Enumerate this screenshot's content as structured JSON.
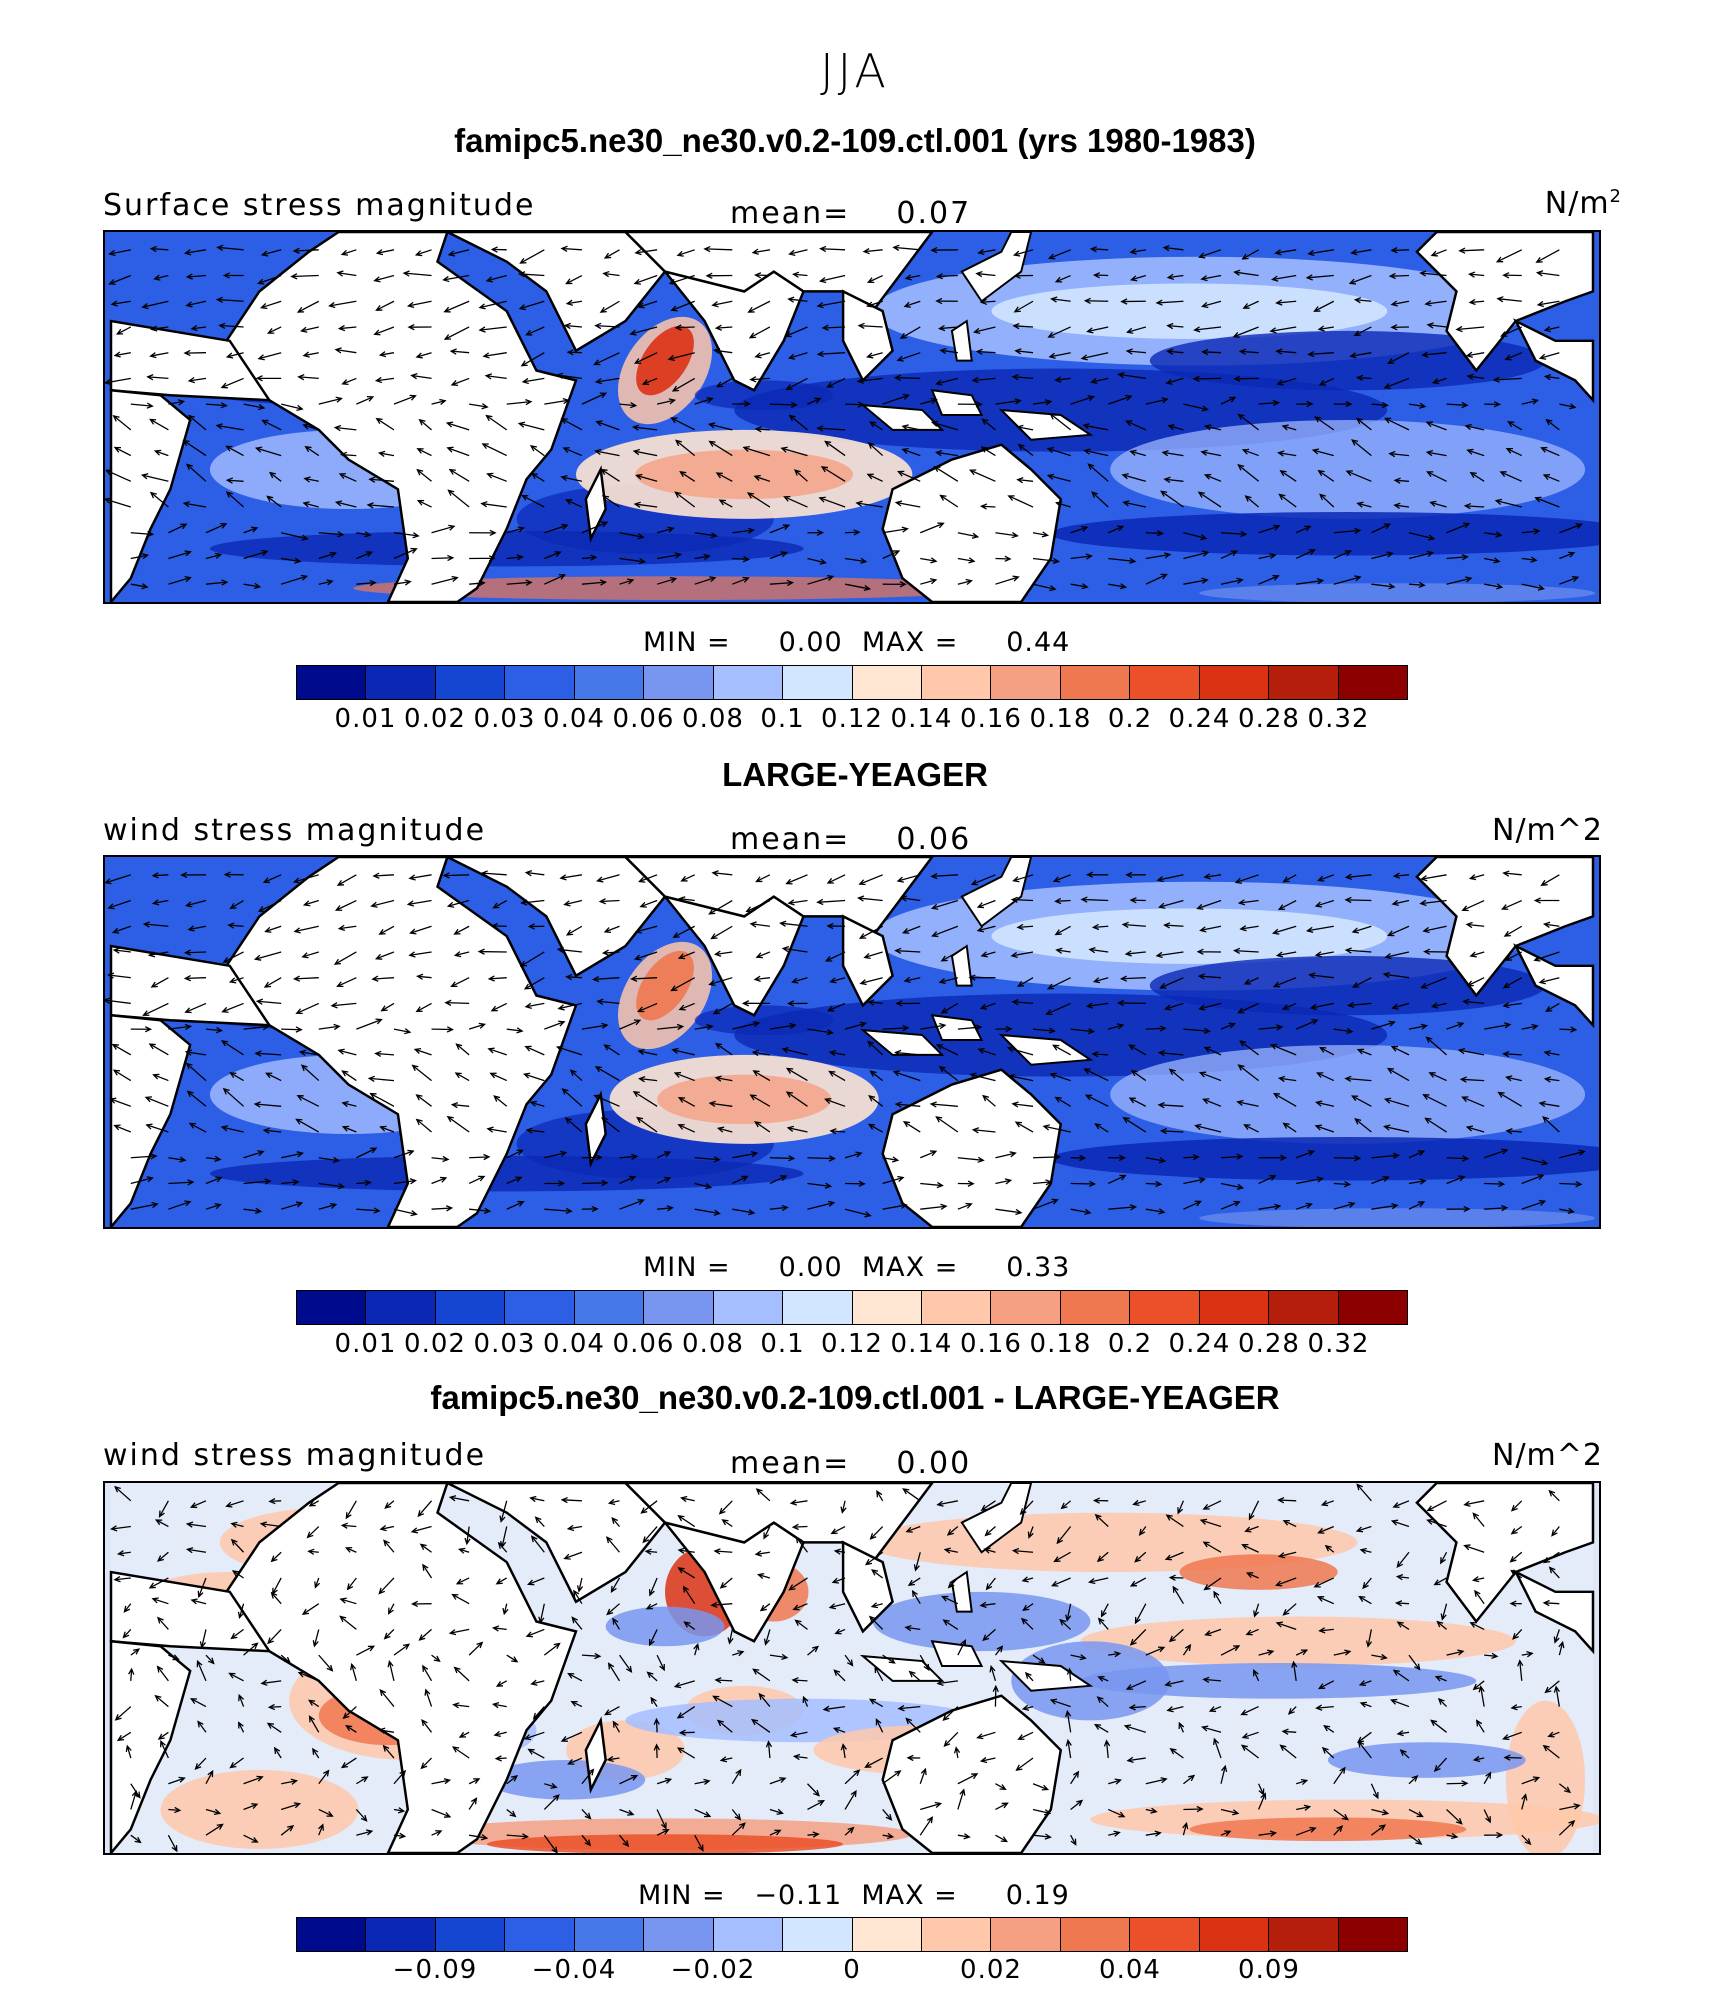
{
  "figure": {
    "season": "JJA",
    "panels": [
      {
        "title": "famipc5.ne30_ne30.v0.2-109.ctl.001 (yrs 1980-1983)",
        "variable": "Surface stress magnitude",
        "mean_label": "mean=    0.07",
        "units": "N/m",
        "units_sup": "2",
        "minmax": "MIN =     0.00  MAX =     0.44",
        "min": 0.0,
        "max": 0.44,
        "mean": 0.07,
        "colorbar": "sequential"
      },
      {
        "title": "LARGE-YEAGER",
        "variable": "wind stress magnitude",
        "mean_label": "mean=    0.06",
        "units": "N/m^2",
        "units_sup": "",
        "minmax": "MIN =     0.00  MAX =     0.33",
        "min": 0.0,
        "max": 0.33,
        "mean": 0.06,
        "colorbar": "sequential"
      },
      {
        "title": "famipc5.ne30_ne30.v0.2-109.ctl.001 - LARGE-YEAGER",
        "variable": "wind stress magnitude",
        "mean_label": "mean=    0.00",
        "units": "N/m^2",
        "units_sup": "",
        "minmax": "MIN =   −0.11  MAX =     0.19",
        "min": -0.11,
        "max": 0.19,
        "mean": 0.0,
        "colorbar": "diverging"
      }
    ],
    "colorbar_sequential": {
      "ticks": [
        "0.01",
        "0.02",
        "0.03",
        "0.04",
        "0.06",
        "0.08",
        "0.1",
        "0.12",
        "0.14",
        "0.16",
        "0.18",
        "0.2",
        "0.24",
        "0.28",
        "0.32"
      ]
    },
    "colorbar_diverging": {
      "ticks": [
        "−0.09",
        "−0.04",
        "−0.02",
        "0",
        "0.02",
        "0.04",
        "0.09"
      ]
    },
    "palette": [
      "#000a8c",
      "#0a28b4",
      "#1446d2",
      "#2d5fe6",
      "#4678ea",
      "#7896f0",
      "#a5beff",
      "#d2e6ff",
      "#ffe6d2",
      "#ffc8aa",
      "#f5a082",
      "#f07850",
      "#eb5028",
      "#dc3214",
      "#b41e0a",
      "#8c0000"
    ]
  }
}
